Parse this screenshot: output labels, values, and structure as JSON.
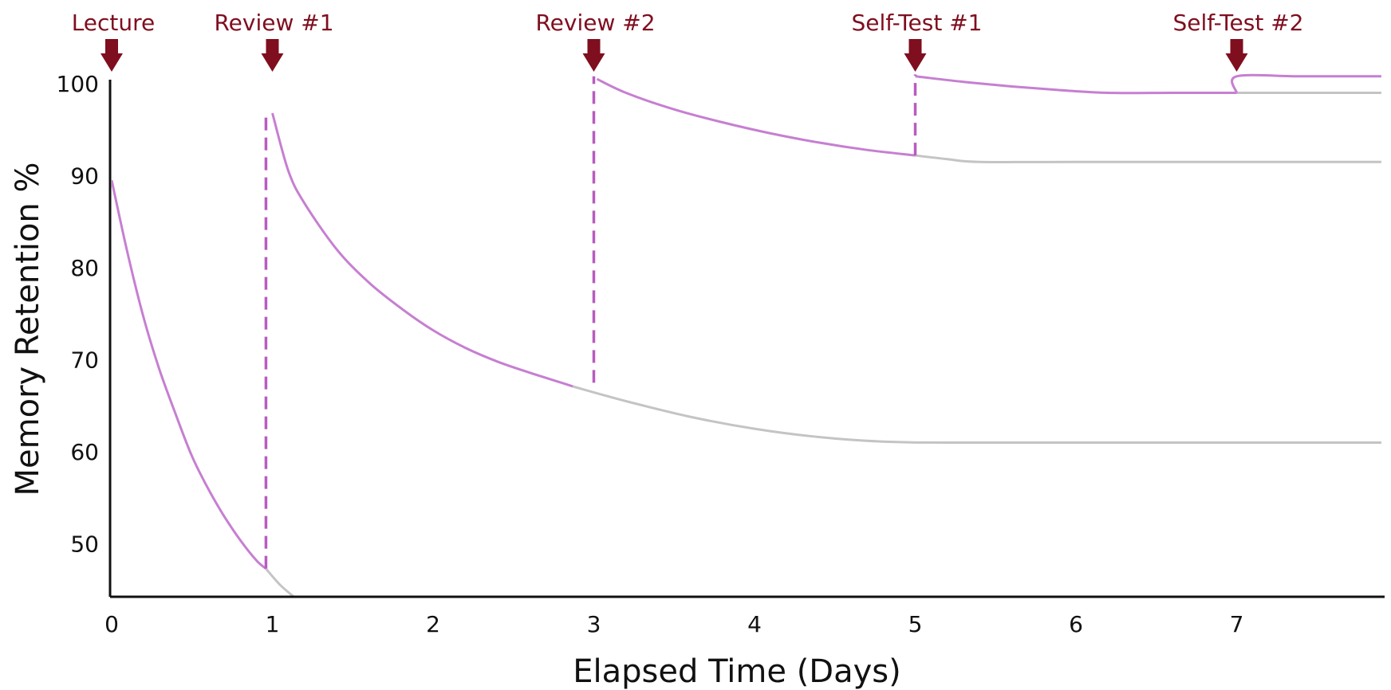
{
  "chart_data": {
    "type": "line",
    "title": "",
    "xlabel": "Elapsed Time (Days)",
    "ylabel": "Memory Retention %",
    "xlim": [
      0,
      7.9
    ],
    "ylim": [
      44,
      100
    ],
    "xticks": [
      0,
      1,
      2,
      3,
      4,
      5,
      6,
      7
    ],
    "yticks": [
      50,
      60,
      70,
      80,
      90,
      100
    ],
    "grid": false,
    "colors": {
      "reviewed": "#c67fd1",
      "forgetting": "#c4c4c4",
      "markers": "#b85cbf",
      "event_arrows": "#7f0e1f",
      "axis": "#111111"
    },
    "events": [
      {
        "label": "Lecture",
        "x": 0
      },
      {
        "label": "Review #1",
        "x": 1
      },
      {
        "label": "Review #2",
        "x": 3
      },
      {
        "label": "Self-Test #1",
        "x": 5
      },
      {
        "label": "Self-Test #2",
        "x": 7
      }
    ],
    "series": [
      {
        "kind": "reviewed",
        "x": [
          0.0,
          0.1,
          0.2,
          0.3,
          0.4,
          0.5,
          0.6,
          0.7,
          0.8,
          0.9,
          0.96
        ],
        "y": [
          89.5,
          81.5,
          74.5,
          68.8,
          64.0,
          59.5,
          56.0,
          53.0,
          50.4,
          48.2,
          47.3
        ]
      },
      {
        "kind": "forgetting",
        "x": [
          0.96,
          1.05,
          1.15
        ],
        "y": [
          47.3,
          45.5,
          44.0
        ]
      },
      {
        "kind": "reviewed",
        "x": [
          1.0,
          1.1,
          1.2,
          1.4,
          1.6,
          1.8,
          2.0,
          2.2,
          2.4,
          2.6,
          2.8,
          2.87
        ],
        "y": [
          96.8,
          90.5,
          87.0,
          82.0,
          78.4,
          75.6,
          73.2,
          71.3,
          69.8,
          68.6,
          67.5,
          67.1
        ]
      },
      {
        "kind": "forgetting",
        "x": [
          2.87,
          3.2,
          3.6,
          4.0,
          4.4,
          4.8,
          5.2,
          6.0,
          7.0,
          7.9
        ],
        "y": [
          67.1,
          65.5,
          63.8,
          62.5,
          61.6,
          61.1,
          61.0,
          61.0,
          61.0,
          61.0
        ]
      },
      {
        "kind": "reviewed",
        "x": [
          3.02,
          3.2,
          3.5,
          3.8,
          4.1,
          4.4,
          4.7,
          5.0
        ],
        "y": [
          100.5,
          99.0,
          97.2,
          95.8,
          94.6,
          93.6,
          92.8,
          92.2
        ]
      },
      {
        "kind": "forgetting",
        "x": [
          5.0,
          5.2,
          5.4,
          6.0,
          7.0,
          7.9
        ],
        "y": [
          92.2,
          91.8,
          91.5,
          91.5,
          91.5,
          91.5
        ]
      },
      {
        "kind": "reviewed",
        "x": [
          5.0,
          5.3,
          5.6,
          5.9,
          6.2,
          6.6,
          7.0
        ],
        "y": [
          100.8,
          100.2,
          99.7,
          99.3,
          99.0,
          99.0,
          99.0
        ]
      },
      {
        "kind": "forgetting",
        "x": [
          7.0,
          7.4,
          7.9
        ],
        "y": [
          99.0,
          99.0,
          99.0
        ]
      },
      {
        "kind": "reviewed",
        "x": [
          7.0,
          7.0,
          7.4,
          7.9
        ],
        "y": [
          99.0,
          100.8,
          100.8,
          100.8
        ]
      }
    ],
    "review_markers": [
      {
        "x": 0.96,
        "y_from": 47.3,
        "y_to": 97.0
      },
      {
        "x": 3.0,
        "y_from": 67.5,
        "y_to": 100.8
      },
      {
        "x": 5.0,
        "y_from": 92.2,
        "y_to": 101.0
      }
    ]
  }
}
